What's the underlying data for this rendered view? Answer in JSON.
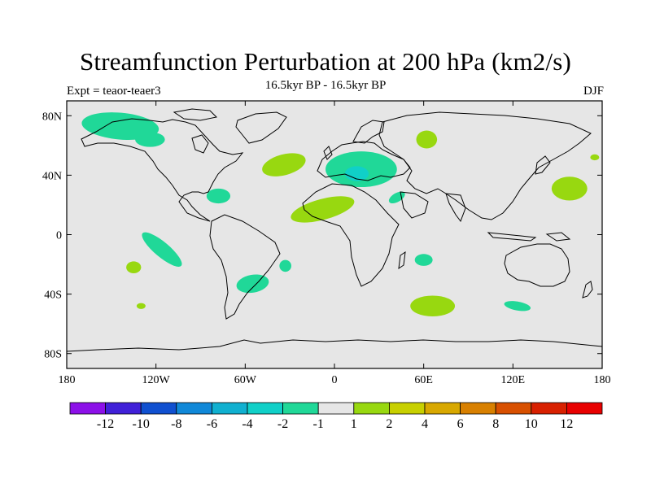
{
  "title": "Streamfunction Perturbation at 200 hPa (km2/s)",
  "subtitle": "16.5kyr BP - 16.5kyr BP",
  "left_label": "Expt = teaor-teaer3",
  "right_label": "DJF",
  "map": {
    "projection": "cylindrical equidistant",
    "lon_range": [
      -180,
      180
    ],
    "lat_range": [
      -90,
      90
    ],
    "x_ticks": [
      {
        "lon": -180,
        "label": "180"
      },
      {
        "lon": -120,
        "label": "120W"
      },
      {
        "lon": -60,
        "label": "60W"
      },
      {
        "lon": 0,
        "label": "0"
      },
      {
        "lon": 60,
        "label": "60E"
      },
      {
        "lon": 120,
        "label": "120E"
      },
      {
        "lon": 180,
        "label": "180"
      }
    ],
    "y_ticks": [
      {
        "lat": 80,
        "label": "80N"
      },
      {
        "lat": 40,
        "label": "40N"
      },
      {
        "lat": 0,
        "label": "0"
      },
      {
        "lat": -40,
        "label": "40S"
      },
      {
        "lat": -80,
        "label": "80S"
      }
    ],
    "background_color": "#e6e6e6",
    "coastline_color": "#000000"
  },
  "colorbar": {
    "colors": [
      "#8c10e8",
      "#4020d8",
      "#1050d0",
      "#1088d8",
      "#10b0d0",
      "#10d0c8",
      "#20d898",
      "#e6e6e6",
      "#98d810",
      "#c8d000",
      "#d8a800",
      "#d88000",
      "#d85000",
      "#d82000",
      "#e80000"
    ],
    "labels": [
      "-12",
      "-10",
      "-8",
      "-6",
      "-4",
      "-2",
      "-1",
      "1",
      "2",
      "4",
      "6",
      "8",
      "10",
      "12"
    ]
  },
  "anomalies": [
    {
      "type": "negative",
      "lon": -144,
      "lat": 73,
      "rx": 26,
      "ry": 9,
      "rot": 5
    },
    {
      "type": "negative",
      "lon": -124,
      "lat": 64,
      "rx": 10,
      "ry": 5,
      "rot": 0
    },
    {
      "type": "negative",
      "lon": 18,
      "lat": 44,
      "rx": 24,
      "ry": 12,
      "rot": 0
    },
    {
      "type": "negative",
      "lon": 15,
      "lat": 40,
      "rx": 9,
      "ry": 5,
      "rot": 0
    },
    {
      "type": "negative",
      "lon": -78,
      "lat": 26,
      "rx": 8,
      "ry": 5,
      "rot": 0
    },
    {
      "type": "negative",
      "lon": 42,
      "lat": 25,
      "rx": 6,
      "ry": 3,
      "rot": -30
    },
    {
      "type": "negative",
      "lon": -116,
      "lat": -10,
      "rx": 17,
      "ry": 5,
      "rot": 40
    },
    {
      "type": "negative",
      "lon": -55,
      "lat": -33,
      "rx": 11,
      "ry": 6,
      "rot": -10
    },
    {
      "type": "negative",
      "lon": -33,
      "lat": -21,
      "rx": 4,
      "ry": 4,
      "rot": 0
    },
    {
      "type": "negative",
      "lon": 60,
      "lat": -17,
      "rx": 6,
      "ry": 4,
      "rot": 0
    },
    {
      "type": "negative",
      "lon": 123,
      "lat": -48,
      "rx": 9,
      "ry": 3,
      "rot": 10
    },
    {
      "type": "positive",
      "lon": -34,
      "lat": 47,
      "rx": 15,
      "ry": 7,
      "rot": -15
    },
    {
      "type": "positive",
      "lon": 62,
      "lat": 64,
      "rx": 7,
      "ry": 6,
      "rot": 0
    },
    {
      "type": "positive",
      "lon": 158,
      "lat": 31,
      "rx": 12,
      "ry": 8,
      "rot": 0
    },
    {
      "type": "positive",
      "lon": 175,
      "lat": 52,
      "rx": 3,
      "ry": 2,
      "rot": 0
    },
    {
      "type": "positive",
      "lon": -8,
      "lat": 17,
      "rx": 22,
      "ry": 7,
      "rot": -15
    },
    {
      "type": "positive",
      "lon": -135,
      "lat": -22,
      "rx": 5,
      "ry": 4,
      "rot": 0
    },
    {
      "type": "positive",
      "lon": -130,
      "lat": -48,
      "rx": 3,
      "ry": 2,
      "rot": 0
    },
    {
      "type": "positive",
      "lon": 66,
      "lat": -48,
      "rx": 15,
      "ry": 7,
      "rot": 0
    }
  ]
}
